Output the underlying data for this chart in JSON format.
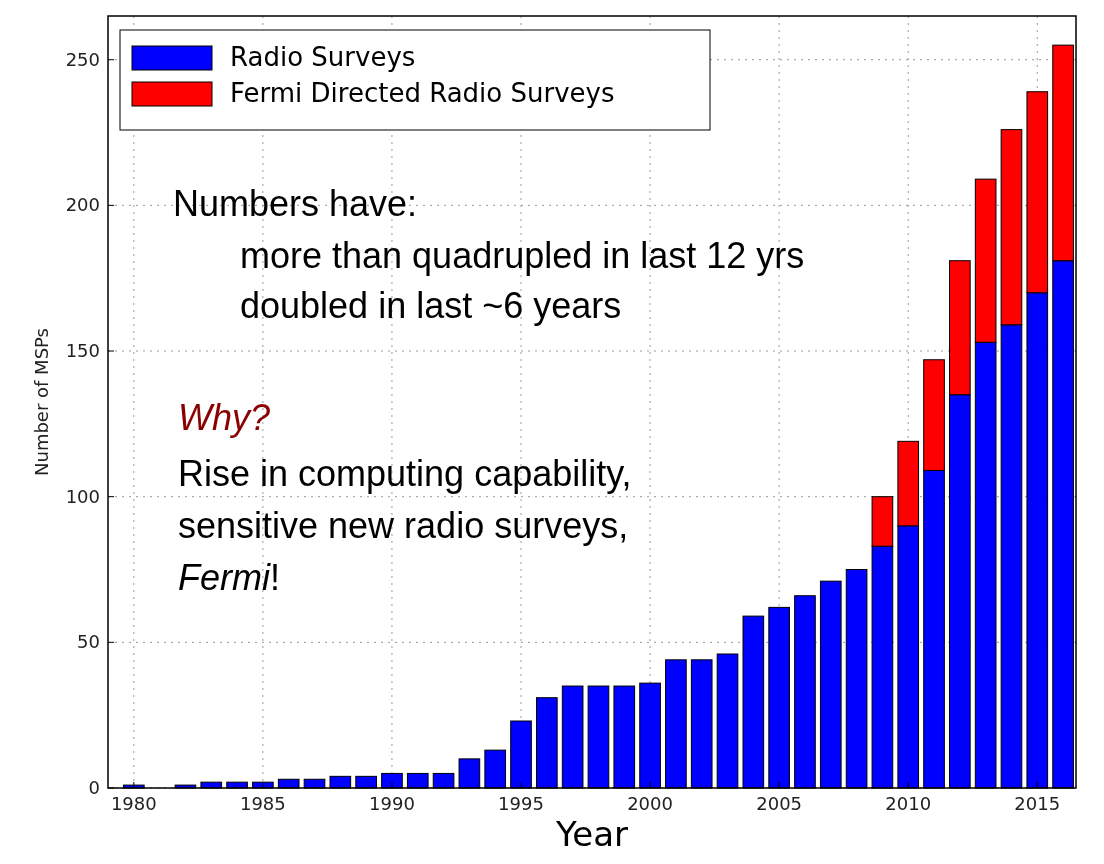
{
  "chart_data": {
    "type": "bar",
    "stacked": true,
    "xlabel": "Year",
    "ylabel": "Number of MSPs",
    "x": [
      1980,
      1981,
      1982,
      1983,
      1984,
      1985,
      1986,
      1987,
      1988,
      1989,
      1990,
      1991,
      1992,
      1993,
      1994,
      1995,
      1996,
      1997,
      1998,
      1999,
      2000,
      2001,
      2002,
      2003,
      2004,
      2005,
      2006,
      2007,
      2008,
      2009,
      2010,
      2011,
      2012,
      2013,
      2014,
      2015,
      2016
    ],
    "series": [
      {
        "name": "Radio Surveys",
        "color": "#0000ff",
        "values": [
          1,
          0,
          1,
          2,
          2,
          2,
          3,
          3,
          4,
          4,
          5,
          5,
          5,
          10,
          13,
          23,
          31,
          35,
          35,
          35,
          36,
          44,
          44,
          46,
          59,
          62,
          66,
          71,
          75,
          83,
          90,
          109,
          135,
          153,
          159,
          170,
          181
        ]
      },
      {
        "name": "Fermi Directed Radio Surveys",
        "color": "#ff0000",
        "values": [
          0,
          0,
          0,
          0,
          0,
          0,
          0,
          0,
          0,
          0,
          0,
          0,
          0,
          0,
          0,
          0,
          0,
          0,
          0,
          0,
          0,
          0,
          0,
          0,
          0,
          0,
          0,
          0,
          0,
          17,
          29,
          38,
          46,
          56,
          67,
          69,
          74
        ]
      }
    ],
    "xlim": [
      1979,
      2016.5
    ],
    "xticks": [
      1980,
      1985,
      1990,
      1995,
      2000,
      2005,
      2010,
      2015
    ],
    "ylim": [
      0,
      265
    ],
    "yticks": [
      0,
      50,
      100,
      150,
      200,
      250
    ],
    "grid": true,
    "legend": "top left",
    "annotations": [
      "Numbers have:",
      "more than quadrupled in last 12 yrs",
      "doubled in last ~6 years",
      "Why?",
      "Rise in computing capability,",
      "sensitive new radio surveys,",
      "Fermi!"
    ]
  }
}
